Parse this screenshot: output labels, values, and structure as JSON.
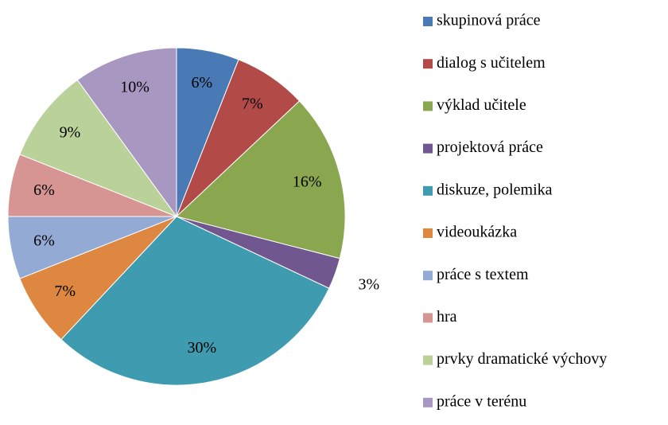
{
  "chart_data": {
    "type": "pie",
    "categories": [
      "skupinová práce",
      "dialog s učitelem",
      "výklad učitele",
      "projektová práce",
      "diskuze, polemika",
      "videoukázka",
      "práce s textem",
      "hra",
      "prvky dramatické výchovy",
      "práce v terénu"
    ],
    "values": [
      6,
      7,
      16,
      3,
      30,
      7,
      6,
      6,
      9,
      10
    ],
    "value_labels": [
      "6%",
      "7%",
      "16%",
      "3%",
      "30%",
      "7%",
      "6%",
      "6%",
      "9%",
      "10%"
    ],
    "colors": [
      "#4a7ab5",
      "#b24a47",
      "#8aa64f",
      "#71578f",
      "#3f9bb0",
      "#de8740",
      "#93aad4",
      "#d69593",
      "#bbd19a",
      "#a897c0"
    ],
    "legend": "right"
  }
}
